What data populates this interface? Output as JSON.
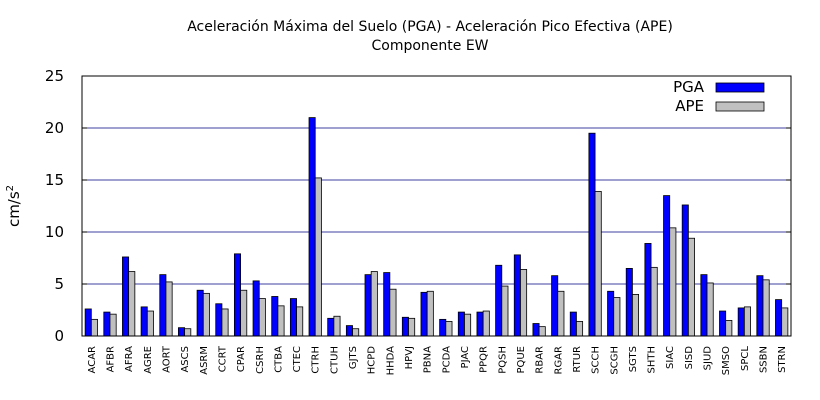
{
  "chart_data": {
    "type": "bar",
    "title": "Aceleración Máxima del Suelo (PGA) -  Aceleración Pico Efectiva (APE)",
    "subtitle": "Componente EW",
    "ylabel_base": "cm/s",
    "ylabel_exp": "2",
    "xlabel": "",
    "ylim": [
      0,
      25
    ],
    "yticks": [
      "0",
      "5",
      "10",
      "15",
      "20",
      "25"
    ],
    "grid": true,
    "legend_position": "top-right",
    "categories": [
      "ACAR",
      "AFBR",
      "AFRA",
      "AGRE",
      "AORT",
      "ASCS",
      "ASRM",
      "CCRT",
      "CPAR",
      "CSRH",
      "CTBA",
      "CTEC",
      "CTRH",
      "CTUH",
      "GJTS",
      "HCPD",
      "HHDA",
      "HPVJ",
      "PBNA",
      "PCDA",
      "PJAC",
      "PPQR",
      "PQSH",
      "PQUE",
      "RBAR",
      "RGAR",
      "RTUR",
      "SCCH",
      "SCGH",
      "SGTS",
      "SHTH",
      "SIAC",
      "SISD",
      "SJUD",
      "SMSO",
      "SPCL",
      "SSBN",
      "STRN"
    ],
    "series": [
      {
        "name": "PGA",
        "color": "#0000ff",
        "values": [
          2.6,
          2.3,
          7.6,
          2.8,
          5.9,
          0.8,
          4.4,
          3.1,
          7.9,
          5.3,
          3.8,
          3.6,
          21.0,
          1.7,
          1.0,
          5.9,
          6.1,
          1.8,
          4.2,
          1.6,
          2.3,
          2.3,
          6.8,
          7.8,
          1.2,
          5.8,
          2.3,
          19.5,
          4.3,
          6.5,
          8.9,
          13.5,
          12.6,
          5.9,
          2.4,
          2.7,
          5.8,
          3.5
        ]
      },
      {
        "name": "APE",
        "color": "#c0c0c0",
        "values": [
          1.6,
          2.1,
          6.2,
          2.4,
          5.2,
          0.7,
          4.1,
          2.6,
          4.4,
          3.6,
          2.9,
          2.8,
          15.2,
          1.9,
          0.7,
          6.2,
          4.5,
          1.7,
          4.3,
          1.4,
          2.1,
          2.4,
          4.8,
          6.4,
          0.9,
          4.3,
          1.4,
          13.9,
          3.7,
          4.0,
          6.6,
          10.4,
          9.4,
          5.1,
          1.5,
          2.8,
          5.4,
          2.7
        ]
      }
    ]
  }
}
